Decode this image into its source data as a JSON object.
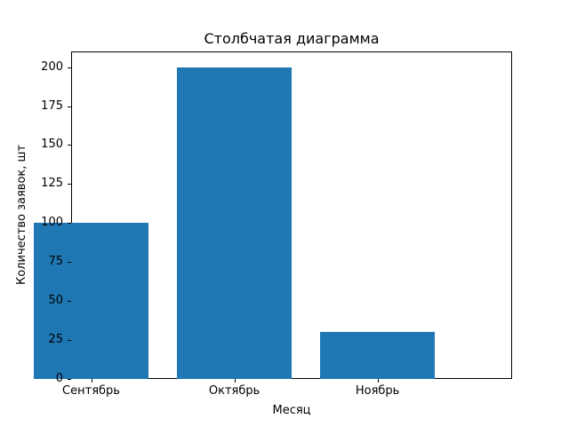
{
  "chart_data": {
    "type": "bar",
    "title": "Столбчатая диаграмма",
    "xlabel": "Месяц",
    "ylabel": "Количество заявок, шт",
    "categories": [
      "Сентябрь",
      "Октябрь",
      "Ноябрь"
    ],
    "values": [
      100,
      200,
      30
    ],
    "yticks": [
      0,
      25,
      50,
      75,
      100,
      125,
      150,
      175,
      200
    ],
    "ylim": [
      0,
      210
    ],
    "bar_color": "#1f77b4",
    "grid": false,
    "legend": "none",
    "background_color": "#ffffff",
    "text_color": "#000000"
  }
}
